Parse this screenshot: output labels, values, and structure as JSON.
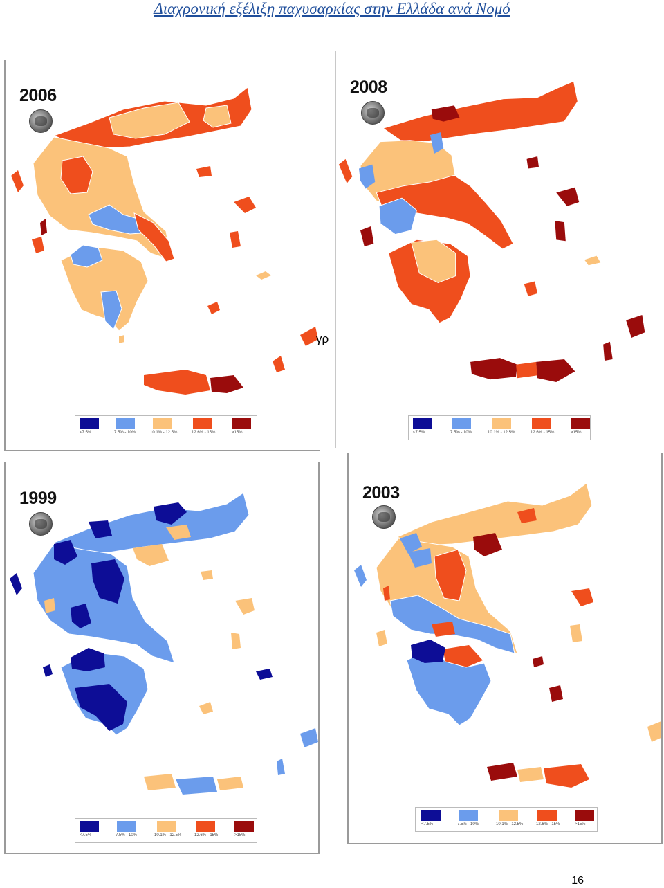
{
  "page": {
    "title": "Διαχρονική εξέλιξη παχυσαρκίας στην Ελλάδα ανά Νομό",
    "side_label": "γρ",
    "page_number": "16"
  },
  "colors": {
    "lt_7_5": "#0d0d96",
    "b7_5_10": "#6b9cec",
    "b10_1_12_5": "#fbc27a",
    "b12_6_15": "#ef4e1d",
    "gt_15": "#9a0c0c"
  },
  "legend": {
    "items": [
      {
        "label": "<7.5%",
        "color": "#0d0d96"
      },
      {
        "label": "7.5% - 10%",
        "color": "#6b9cec"
      },
      {
        "label": "10.1% - 12.5%",
        "color": "#fbc27a"
      },
      {
        "label": "12.6% - 15%",
        "color": "#ef4e1d"
      },
      {
        "label": ">15%",
        "color": "#9a0c0c"
      }
    ]
  },
  "maps": [
    {
      "year": "2006",
      "dominant": "b10_1_12_5"
    },
    {
      "year": "2008",
      "dominant": "b12_6_15"
    },
    {
      "year": "1999",
      "dominant": "b7_5_10"
    },
    {
      "year": "2003",
      "dominant": "b10_1_12_5"
    }
  ]
}
